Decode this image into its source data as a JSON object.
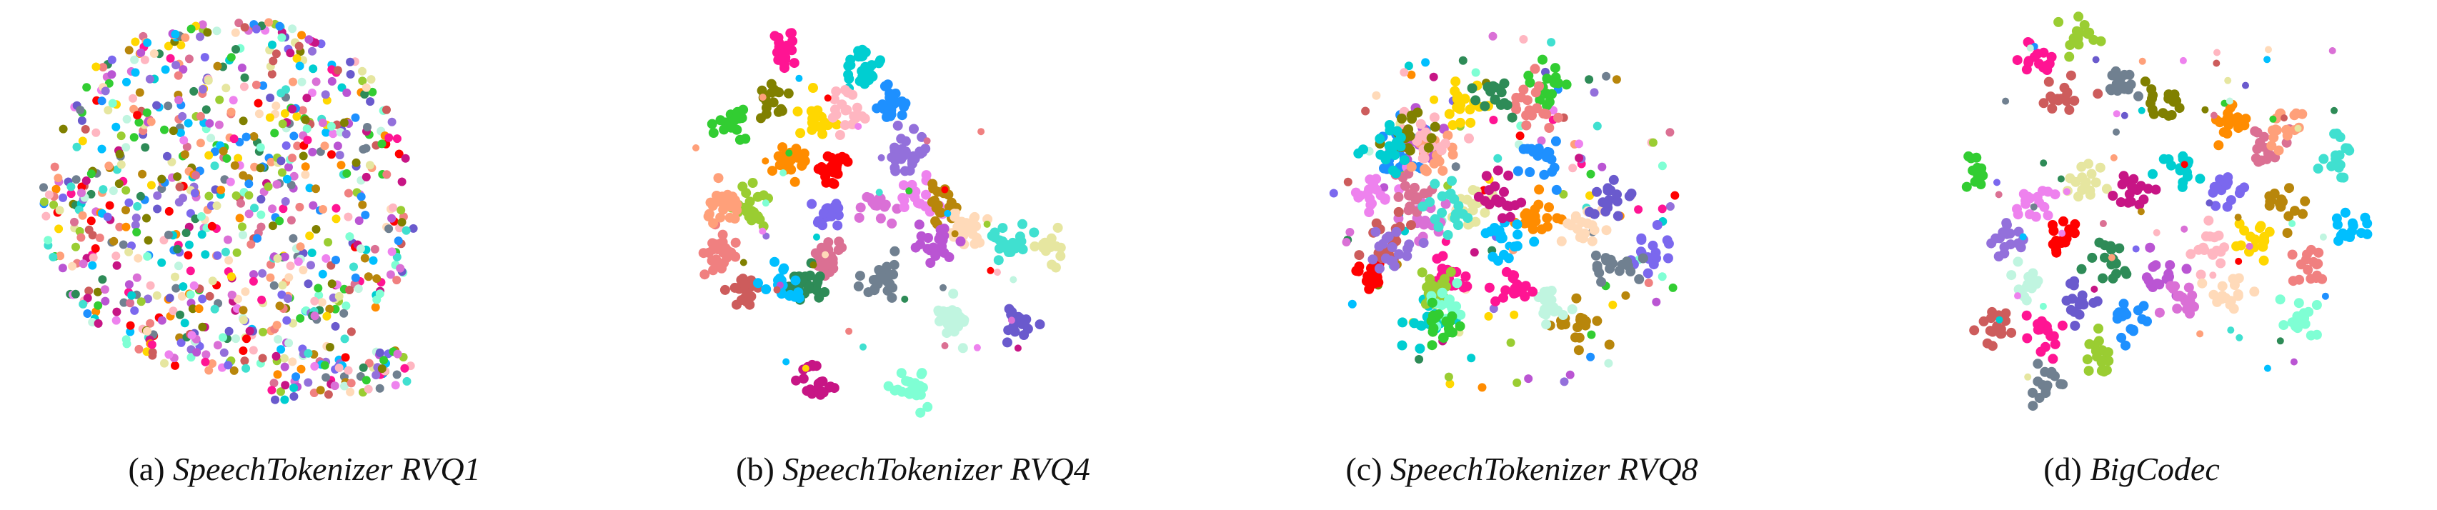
{
  "panels": [
    {
      "label": "(a)",
      "title": "SpeechTokenizer RVQ1"
    },
    {
      "label": "(b)",
      "title": "SpeechTokenizer RVQ4"
    },
    {
      "label": "(c)",
      "title": "SpeechTokenizer RVQ8"
    },
    {
      "label": "(d)",
      "title": "BigCodec"
    }
  ],
  "palette": [
    "#ff1493",
    "#00ced1",
    "#1e90ff",
    "#32cd32",
    "#ffd700",
    "#ff8c00",
    "#ff0000",
    "#9acd32",
    "#7b68ee",
    "#da70d6",
    "#ee82ee",
    "#f08080",
    "#db7093",
    "#2e8b57",
    "#708090",
    "#b8860b",
    "#ffdab9",
    "#e6e6a0",
    "#c0f5e0",
    "#40e0d0",
    "#ba55d3",
    "#cd5c5c",
    "#00bfff",
    "#7fffd4",
    "#c71585",
    "#6a5acd",
    "#ffa07a",
    "#ffb6c1",
    "#808000",
    "#9370db"
  ],
  "chart_data": [
    {
      "type": "scatter",
      "method": "t-SNE",
      "title": "(a) SpeechTokenizer RVQ1",
      "clusters": "mixed"
    },
    {
      "type": "scatter",
      "method": "t-SNE",
      "title": "(b) SpeechTokenizer RVQ4",
      "clusters": "well-separated"
    },
    {
      "type": "scatter",
      "method": "t-SNE",
      "title": "(c) SpeechTokenizer RVQ8",
      "clusters": "partially-separated"
    },
    {
      "type": "scatter",
      "method": "t-SNE",
      "title": "(d) BigCodec",
      "clusters": "separated"
    }
  ]
}
